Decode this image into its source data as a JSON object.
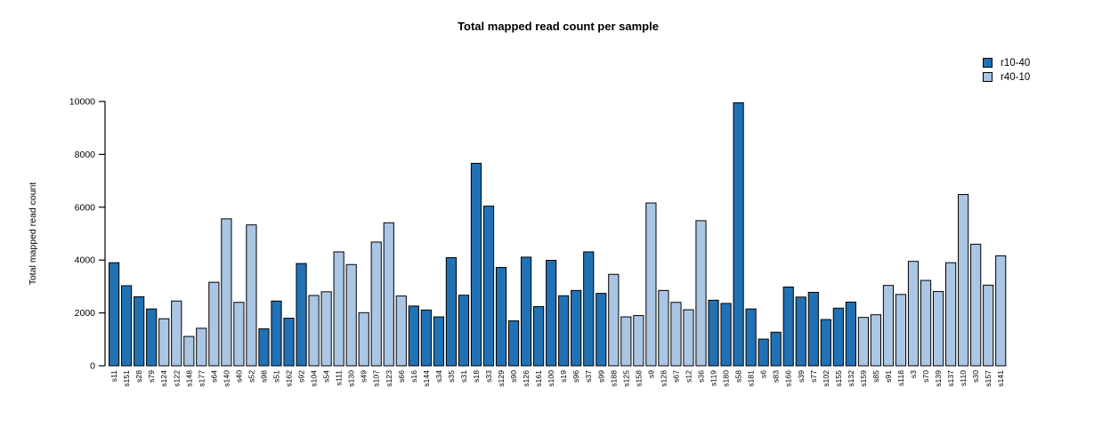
{
  "title": "Total mapped read count per sample",
  "legend": {
    "items": [
      {
        "label": "r10-40",
        "color": "#2171b5"
      },
      {
        "label": "r40-10",
        "color": "#aac6e4"
      }
    ]
  },
  "chart_data": {
    "type": "bar",
    "title": "Total mapped read count per sample",
    "xlabel": "",
    "ylabel": "Total mapped read count",
    "ylim": [
      0,
      10000
    ],
    "yticks": [
      0,
      2000,
      4000,
      6000,
      8000,
      10000
    ],
    "grid": false,
    "legend_position": "top-right",
    "bar_edge_color": "#000000",
    "series_colors": {
      "r10-40": "#2171b5",
      "r40-10": "#aac6e4"
    },
    "categories": [
      "s11",
      "s151",
      "s28",
      "s79",
      "s124",
      "s122",
      "s148",
      "s177",
      "s64",
      "s140",
      "s40",
      "s52",
      "s98",
      "s51",
      "s162",
      "s92",
      "s104",
      "s54",
      "s111",
      "s130",
      "s49",
      "s107",
      "s123",
      "s66",
      "s16",
      "s144",
      "s34",
      "s35",
      "s31",
      "s18",
      "s33",
      "s129",
      "s90",
      "s126",
      "s161",
      "s100",
      "s19",
      "s96",
      "s37",
      "s99",
      "s188",
      "s125",
      "s158",
      "s9",
      "s128",
      "s67",
      "s12",
      "s36",
      "s119",
      "s180",
      "s58",
      "s181",
      "s6",
      "s83",
      "s166",
      "s39",
      "s77",
      "s102",
      "s155",
      "s132",
      "s159",
      "s85",
      "s91",
      "s118",
      "s3",
      "s70",
      "s139",
      "s137",
      "s110",
      "s30",
      "s157",
      "s141"
    ],
    "values": [
      3900,
      3030,
      2610,
      2150,
      1780,
      2450,
      1110,
      1420,
      3160,
      5560,
      2400,
      5330,
      1400,
      2450,
      1800,
      3870,
      2660,
      2800,
      4310,
      3830,
      2010,
      4680,
      5410,
      2640,
      2260,
      2110,
      1850,
      4090,
      2670,
      7660,
      6040,
      3720,
      1700,
      4110,
      2240,
      3990,
      2650,
      2850,
      4310,
      2740,
      3460,
      1850,
      1900,
      6160,
      2850,
      2400,
      2120,
      5490,
      2480,
      2360,
      9950,
      2150,
      1010,
      1270,
      2980,
      2600,
      2780,
      1750,
      2180,
      2410,
      1830,
      1930,
      3040,
      2700,
      3950,
      3230,
      2810,
      3900,
      6480,
      4600,
      3050,
      4160
    ],
    "groups": [
      "r10-40",
      "r10-40",
      "r10-40",
      "r10-40",
      "r40-10",
      "r40-10",
      "r40-10",
      "r40-10",
      "r40-10",
      "r40-10",
      "r40-10",
      "r40-10",
      "r10-40",
      "r10-40",
      "r10-40",
      "r10-40",
      "r40-10",
      "r40-10",
      "r40-10",
      "r40-10",
      "r40-10",
      "r40-10",
      "r40-10",
      "r40-10",
      "r10-40",
      "r10-40",
      "r10-40",
      "r10-40",
      "r10-40",
      "r10-40",
      "r10-40",
      "r10-40",
      "r10-40",
      "r10-40",
      "r10-40",
      "r10-40",
      "r10-40",
      "r10-40",
      "r10-40",
      "r10-40",
      "r40-10",
      "r40-10",
      "r40-10",
      "r40-10",
      "r40-10",
      "r40-10",
      "r40-10",
      "r40-10",
      "r10-40",
      "r10-40",
      "r10-40",
      "r10-40",
      "r10-40",
      "r10-40",
      "r10-40",
      "r10-40",
      "r10-40",
      "r10-40",
      "r10-40",
      "r10-40",
      "r40-10",
      "r40-10",
      "r40-10",
      "r40-10",
      "r40-10",
      "r40-10",
      "r40-10",
      "r40-10",
      "r40-10",
      "r40-10",
      "r40-10",
      "r40-10"
    ]
  }
}
